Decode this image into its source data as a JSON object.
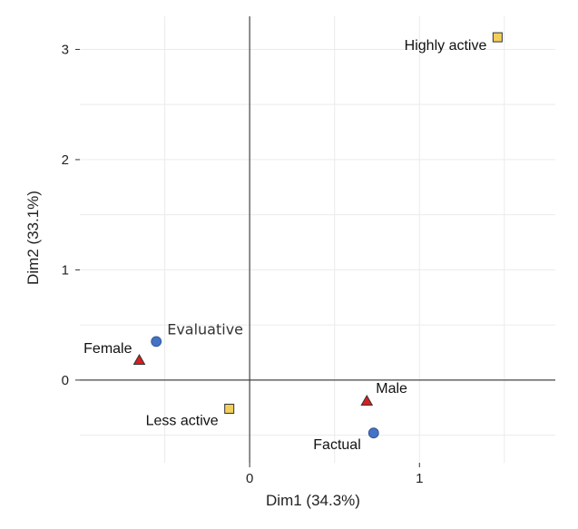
{
  "chart_data": {
    "type": "scatter",
    "title": "",
    "xlabel": "Dim1 (34.3%)",
    "ylabel": "Dim2 (33.1%)",
    "xlim": [
      -1.0,
      1.8
    ],
    "ylim": [
      -0.75,
      3.3
    ],
    "grid": true,
    "legend": "none",
    "x_ticks": [
      0,
      1
    ],
    "y_ticks": [
      0,
      1,
      2,
      3
    ],
    "points": [
      {
        "label": "Highly active",
        "x": 1.46,
        "y": 3.11,
        "marker": "square",
        "color": "#f2cf5b",
        "group": "activity"
      },
      {
        "label": "Less active",
        "x": -0.12,
        "y": -0.26,
        "marker": "square",
        "color": "#f2cf5b",
        "group": "activity"
      },
      {
        "label": "Evaluative",
        "x": -0.55,
        "y": 0.35,
        "marker": "circle",
        "color": "#4472c4",
        "group": "style"
      },
      {
        "label": "Factual",
        "x": 0.73,
        "y": -0.48,
        "marker": "circle",
        "color": "#4472c4",
        "group": "style"
      },
      {
        "label": "Female",
        "x": -0.65,
        "y": 0.18,
        "marker": "triangle",
        "color": "#d42020",
        "group": "gender"
      },
      {
        "label": "Male",
        "x": 0.69,
        "y": -0.19,
        "marker": "triangle",
        "color": "#d42020",
        "group": "gender"
      }
    ]
  }
}
